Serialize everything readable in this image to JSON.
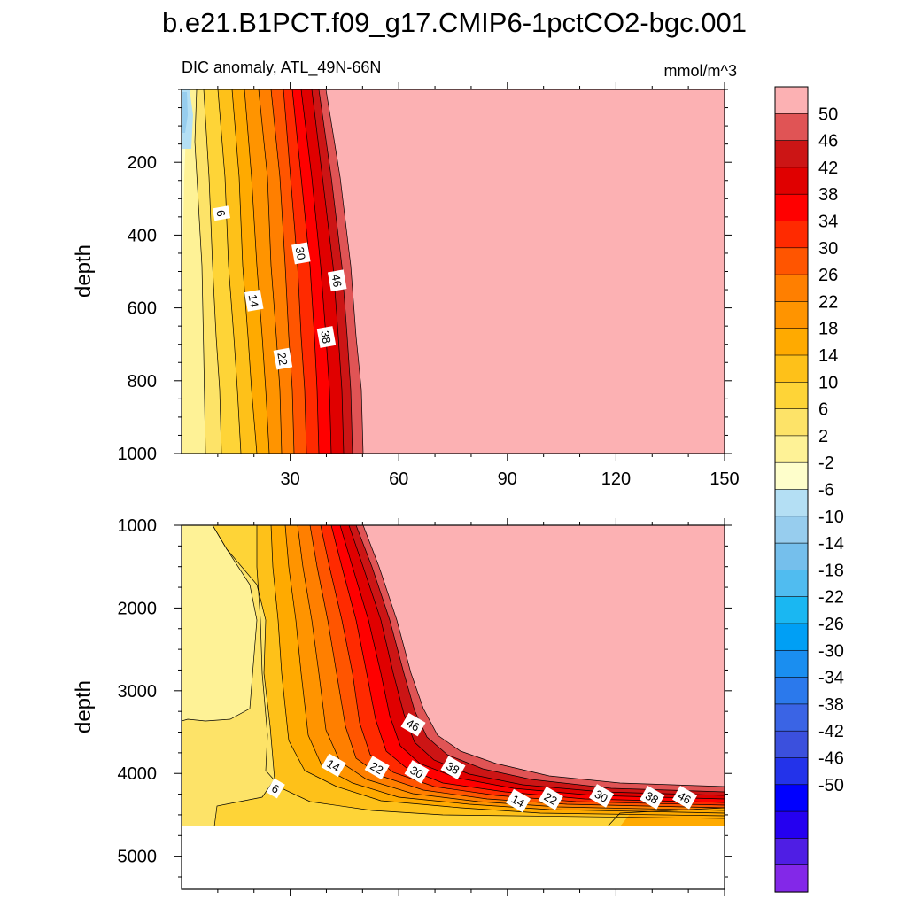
{
  "chart_data": [
    {
      "type": "contour",
      "title": "b.e21.B1PCT.f09_g17.CMIP6-1pctCO2-bgc.001",
      "left_string": "DIC anomaly, ATL_49N-66N",
      "right_string": "mmol/m^3",
      "xlabel": "",
      "ylabel": "depth",
      "xlim": [
        0,
        150
      ],
      "ylim": [
        1000,
        0
      ],
      "x_ticks": [
        30,
        60,
        90,
        120,
        150
      ],
      "y_ticks": [
        200,
        400,
        600,
        800,
        1000
      ],
      "contour_labels": [
        {
          "text": "6",
          "x": 11,
          "y": 340
        },
        {
          "text": "14",
          "x": 20,
          "y": 580
        },
        {
          "text": "22",
          "x": 28,
          "y": 740
        },
        {
          "text": "30",
          "x": 33,
          "y": 450
        },
        {
          "text": "38",
          "x": 40,
          "y": 680
        },
        {
          "text": "46",
          "x": 43,
          "y": 525
        }
      ]
    },
    {
      "type": "contour",
      "xlabel": "",
      "ylabel": "depth",
      "xlim": [
        0,
        150
      ],
      "ylim": [
        5400,
        1000
      ],
      "y_ticks": [
        1000,
        2000,
        3000,
        4000,
        5000
      ],
      "x_ticks": [
        30,
        60,
        90,
        120,
        150
      ],
      "contour_labels": [
        {
          "text": "6",
          "x": 26,
          "y": 4180
        },
        {
          "text": "14",
          "x": 42,
          "y": 3900
        },
        {
          "text": "22",
          "x": 54,
          "y": 3930
        },
        {
          "text": "30",
          "x": 65,
          "y": 3980
        },
        {
          "text": "38",
          "x": 75,
          "y": 3930
        },
        {
          "text": "46",
          "x": 64,
          "y": 3410
        },
        {
          "text": "14",
          "x": 93,
          "y": 4330
        },
        {
          "text": "22",
          "x": 102,
          "y": 4300
        },
        {
          "text": "30",
          "x": 116,
          "y": 4270
        },
        {
          "text": "38",
          "x": 130,
          "y": 4290
        },
        {
          "text": "46",
          "x": 139,
          "y": 4290
        }
      ]
    }
  ],
  "colorbar": {
    "labels": [
      "50",
      "46",
      "42",
      "38",
      "34",
      "30",
      "26",
      "22",
      "18",
      "14",
      "10",
      "6",
      "2",
      "-2",
      "-6",
      "-10",
      "-14",
      "-18",
      "-22",
      "-26",
      "-30",
      "-34",
      "-38",
      "-42",
      "-46",
      "-50"
    ],
    "colors": [
      "#fcb1b3",
      "#e05455",
      "#cc1515",
      "#e00000",
      "#ff0000",
      "#ff2a00",
      "#ff5500",
      "#ff7f00",
      "#ff9400",
      "#ffaa00",
      "#fec119",
      "#fed437",
      "#fde368",
      "#fef296",
      "#fefecb",
      "#b4dff4",
      "#97cdee",
      "#75bfec",
      "#50bcf0",
      "#1ab7f2",
      "#009ff5",
      "#1a8ef0",
      "#2b79ec",
      "#3a64e5",
      "#3b50dd",
      "#2333ea",
      "#0000ff",
      "#2500f0",
      "#4f1ee4",
      "#8328e8"
    ]
  },
  "colors": {
    "fill_low": "#fefecb",
    "fill_high": "#fcb1b3"
  }
}
